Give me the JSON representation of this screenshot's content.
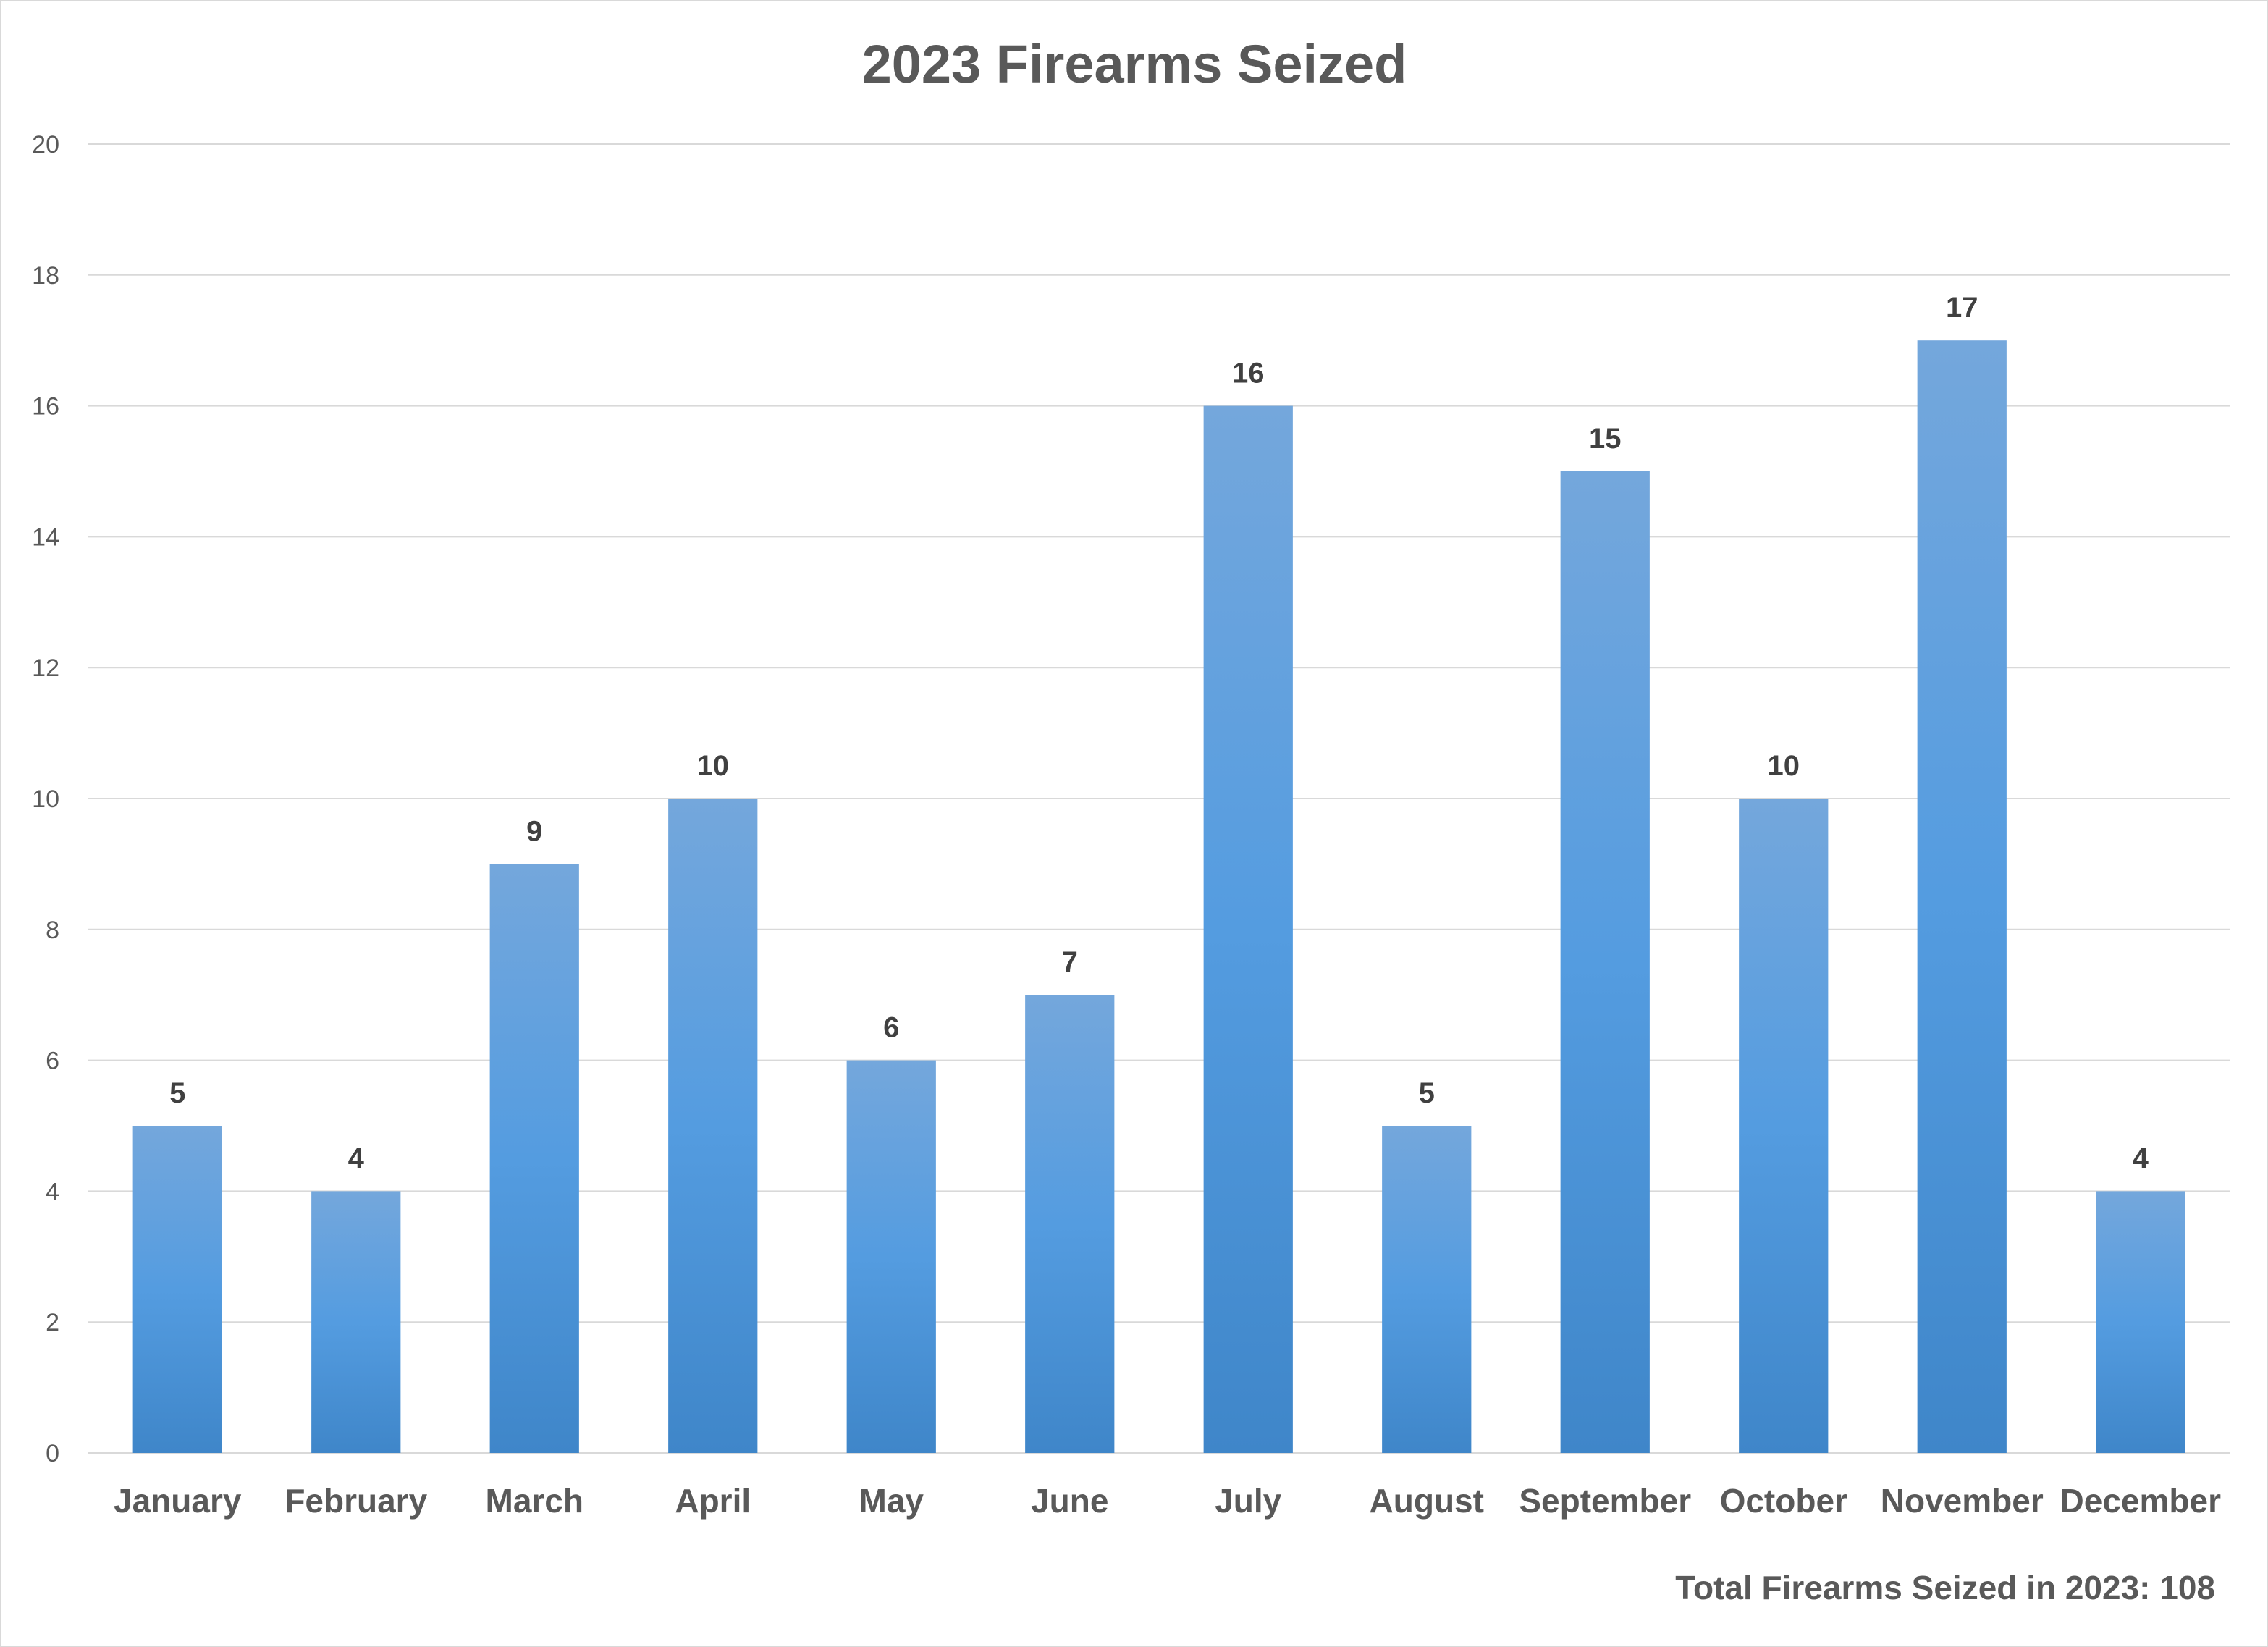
{
  "chart_data": {
    "type": "bar",
    "title": "2023 Firearms Seized",
    "categories": [
      "January",
      "February",
      "March",
      "April",
      "May",
      "June",
      "July",
      "August",
      "September",
      "October",
      "November",
      "December"
    ],
    "values": [
      5,
      4,
      9,
      10,
      6,
      7,
      16,
      5,
      15,
      10,
      17,
      4
    ],
    "ylim": [
      0,
      20
    ],
    "yticks": [
      0,
      2,
      4,
      6,
      8,
      10,
      12,
      14,
      16,
      18,
      20
    ],
    "xlabel": "",
    "ylabel": "",
    "grid": true,
    "data_labels": true,
    "legend": "none",
    "annotation": "Total Firearms Seized in 2023: 108"
  },
  "colors": {
    "bar_top": "#74a7dc",
    "bar_mid": "#549ce0",
    "bar_bottom": "#3f86c9",
    "gridline": "#d9d9d9",
    "text": "#595959",
    "data_label": "#404040"
  }
}
